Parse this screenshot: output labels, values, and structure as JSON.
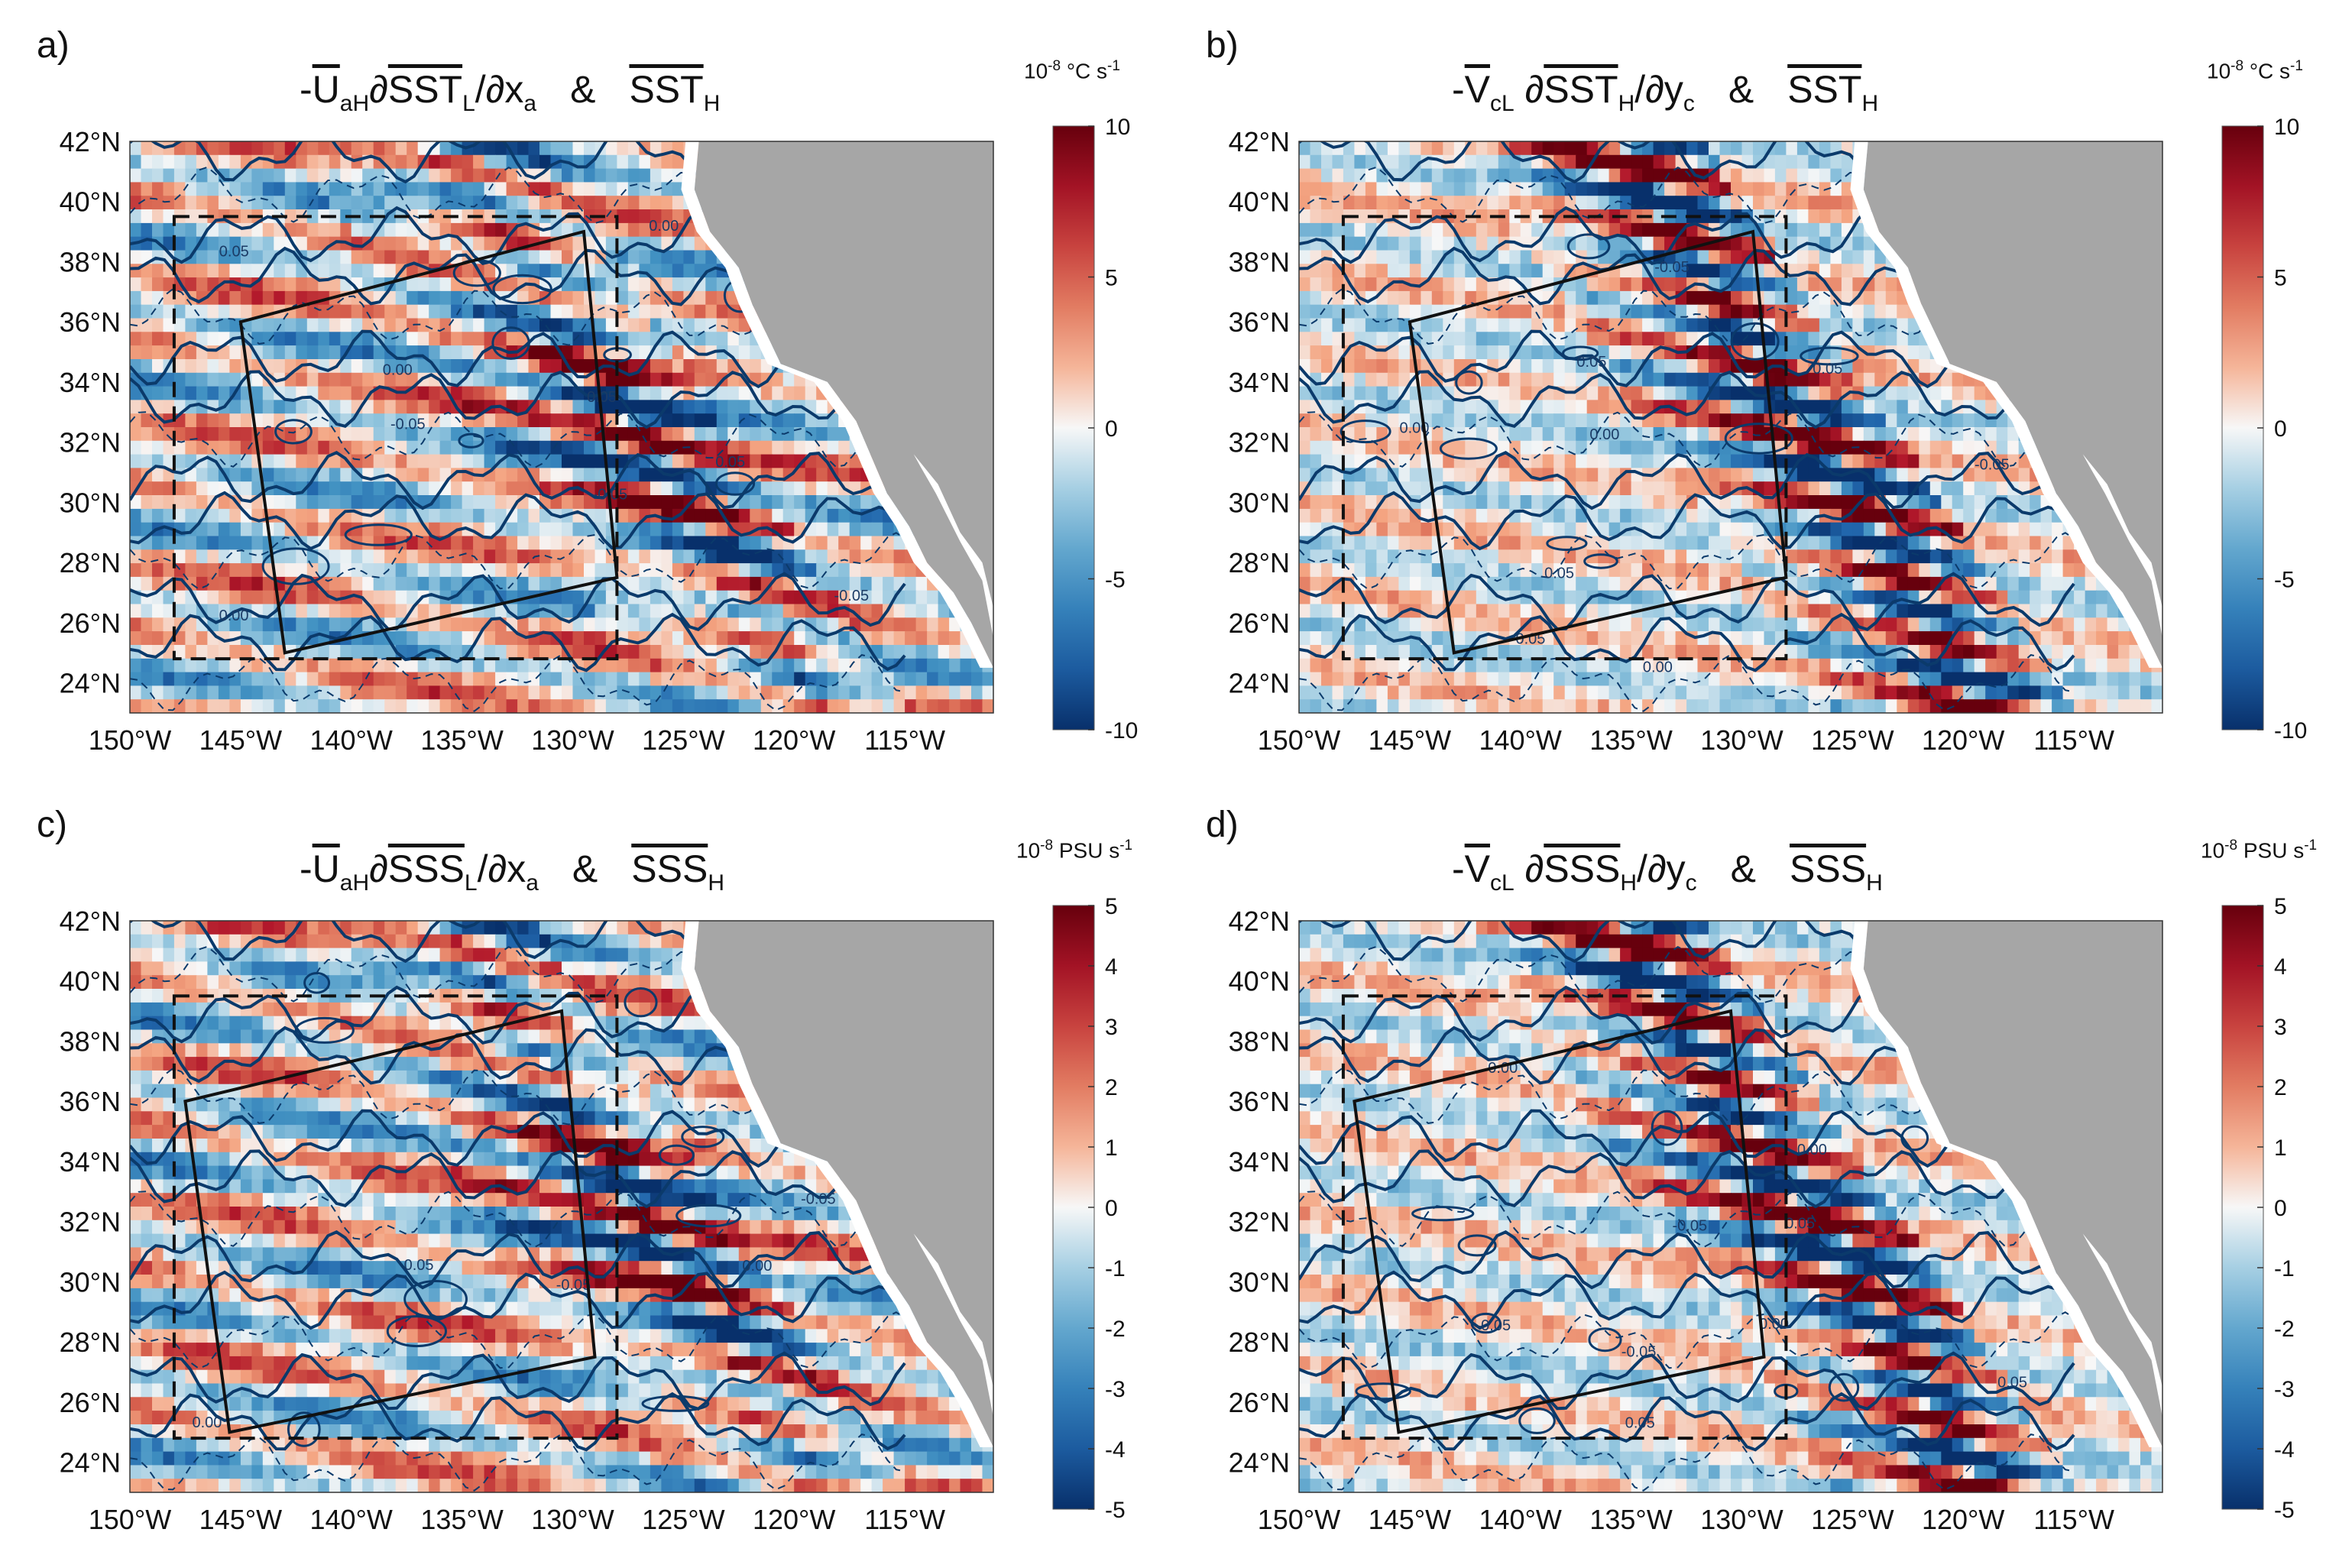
{
  "panels": [
    {
      "label": "a)",
      "title": {
        "prefix": "-",
        "sym": "U",
        "sub1": "aH",
        "op": "∂",
        "field": "SST",
        "sub2": "L",
        "rest": "/∂x",
        "sub3": "a",
        "amp": "&",
        "field2": "SST",
        "sub4": "H"
      },
      "cb_unit": {
        "base": "10",
        "exp": "-8",
        "unit": "°C s",
        "exp2": "-1"
      },
      "cb_ticks": [
        "10",
        "5",
        "0",
        "-5",
        "-10"
      ],
      "contour_labels": [
        "0.00",
        "0.05",
        "-0.05"
      ]
    },
    {
      "label": "b)",
      "title": {
        "prefix": "-",
        "sym": "V",
        "sub1": "cL",
        "op": " ∂",
        "field": "SST",
        "sub2": "H",
        "rest": "/∂y",
        "sub3": "c",
        "amp": "&",
        "field2": "SST",
        "sub4": "H"
      },
      "cb_unit": {
        "base": "10",
        "exp": "-8",
        "unit": "°C s",
        "exp2": "-1"
      },
      "cb_ticks": [
        "10",
        "5",
        "0",
        "-5",
        "-10"
      ],
      "contour_labels": [
        "0.00",
        "0.05",
        "-0.05"
      ]
    },
    {
      "label": "c)",
      "title": {
        "prefix": "-",
        "sym": "U",
        "sub1": "aH",
        "op": "∂",
        "field": "SSS",
        "sub2": "L",
        "rest": "/∂x",
        "sub3": "a",
        "amp": "&",
        "field2": "SSS",
        "sub4": "H"
      },
      "cb_unit": {
        "base": "10",
        "exp": "-8",
        "unit": " PSU s",
        "exp2": "-1"
      },
      "cb_ticks": [
        "5",
        "4",
        "3",
        "2",
        "1",
        "0",
        "-1",
        "-2",
        "-3",
        "-4",
        "-5"
      ],
      "contour_labels": [
        "0.00",
        "0.05",
        "-0.05"
      ]
    },
    {
      "label": "d)",
      "title": {
        "prefix": "-",
        "sym": "V",
        "sub1": "cL",
        "op": " ∂",
        "field": "SSS",
        "sub2": "H",
        "rest": "/∂y",
        "sub3": "c",
        "amp": "&",
        "field2": "SSS",
        "sub4": "H"
      },
      "cb_unit": {
        "base": "10",
        "exp": "-8",
        "unit": " PSU s",
        "exp2": "-1"
      },
      "cb_ticks": [
        "5",
        "4",
        "3",
        "2",
        "1",
        "0",
        "-1",
        "-2",
        "-3",
        "-4",
        "-5"
      ],
      "contour_labels": [
        "0.00",
        "0.05",
        "-0.05"
      ]
    }
  ],
  "lat_labels": [
    "42°N",
    "40°N",
    "38°N",
    "36°N",
    "34°N",
    "32°N",
    "30°N",
    "28°N",
    "26°N",
    "24°N"
  ],
  "lon_labels": [
    "150°W",
    "145°W",
    "140°W",
    "135°W",
    "130°W",
    "125°W",
    "120°W",
    "115°W"
  ],
  "colors": {
    "red": "#a50f15",
    "blue": "#08306b",
    "land": "#a6a6a6",
    "contour": "#0b3a6b",
    "white": "#f7f7f7"
  },
  "chart_data": [
    {
      "type": "heatmap",
      "title": "-U_aH ∂SST_L/∂x_a & SST_H",
      "xlabel": "longitude",
      "ylabel": "latitude",
      "xlim": [
        -150,
        -111
      ],
      "ylim": [
        23,
        42
      ],
      "colorbar": {
        "label": "10^-8 °C s^-1",
        "range": [
          -10,
          10
        ],
        "ticks": [
          10,
          5,
          0,
          -5,
          -10
        ]
      },
      "boxes": {
        "dashed": {
          "lon": [
            -148,
            -128
          ],
          "lat": [
            24.8,
            39.5
          ]
        },
        "rotated_corners_lonlat": [
          [
            -145,
            36
          ],
          [
            -129.5,
            39
          ],
          [
            -128,
            27.5
          ],
          [
            -143,
            25
          ]
        ]
      },
      "contour_levels": [
        -0.05,
        0,
        0.05
      ]
    },
    {
      "type": "heatmap",
      "title": "-V_cL ∂SST_H/∂y_c & SST_H",
      "xlabel": "longitude",
      "ylabel": "latitude",
      "xlim": [
        -150,
        -111
      ],
      "ylim": [
        23,
        42
      ],
      "colorbar": {
        "label": "10^-8 °C s^-1",
        "range": [
          -10,
          10
        ],
        "ticks": [
          10,
          5,
          0,
          -5,
          -10
        ]
      },
      "boxes": {
        "dashed": {
          "lon": [
            -148,
            -128
          ],
          "lat": [
            24.8,
            39.5
          ]
        },
        "rotated_corners_lonlat": [
          [
            -145,
            36
          ],
          [
            -129.5,
            39
          ],
          [
            -128,
            27.5
          ],
          [
            -143,
            25
          ]
        ]
      },
      "contour_levels": [
        -0.05,
        0,
        0.05
      ]
    },
    {
      "type": "heatmap",
      "title": "-U_aH ∂SSS_L/∂x_a & SSS_H",
      "xlabel": "longitude",
      "ylabel": "latitude",
      "xlim": [
        -150,
        -111
      ],
      "ylim": [
        23,
        42
      ],
      "colorbar": {
        "label": "10^-8 PSU s^-1",
        "range": [
          -5,
          5
        ],
        "ticks": [
          5,
          4,
          3,
          2,
          1,
          0,
          -1,
          -2,
          -3,
          -4,
          -5
        ]
      },
      "boxes": {
        "dashed": {
          "lon": [
            -148,
            -128
          ],
          "lat": [
            24.8,
            39.5
          ]
        },
        "rotated_corners_lonlat": [
          [
            -147.5,
            36
          ],
          [
            -130.5,
            39
          ],
          [
            -129,
            27.5
          ],
          [
            -145.5,
            25
          ]
        ]
      },
      "contour_levels": [
        -0.05,
        0,
        0.05
      ]
    },
    {
      "type": "heatmap",
      "title": "-V_cL ∂SSS_H/∂y_c & SSS_H",
      "xlabel": "longitude",
      "ylabel": "latitude",
      "xlim": [
        -150,
        -111
      ],
      "ylim": [
        23,
        42
      ],
      "colorbar": {
        "label": "10^-8 PSU s^-1",
        "range": [
          -5,
          5
        ],
        "ticks": [
          5,
          4,
          3,
          2,
          1,
          0,
          -1,
          -2,
          -3,
          -4,
          -5
        ]
      },
      "boxes": {
        "dashed": {
          "lon": [
            -148,
            -128
          ],
          "lat": [
            24.8,
            39.5
          ]
        },
        "rotated_corners_lonlat": [
          [
            -147.5,
            36
          ],
          [
            -130.5,
            39
          ],
          [
            -129,
            27.5
          ],
          [
            -145.5,
            25
          ]
        ]
      },
      "contour_levels": [
        -0.05,
        0,
        0.05
      ]
    }
  ]
}
